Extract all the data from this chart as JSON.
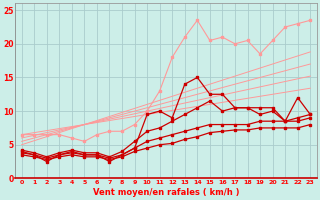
{
  "x": [
    0,
    1,
    2,
    3,
    4,
    5,
    6,
    7,
    8,
    9,
    10,
    11,
    12,
    13,
    14,
    15,
    16,
    17,
    18,
    19,
    20,
    21,
    22,
    23
  ],
  "reg1": [
    6.5,
    6.8,
    7.1,
    7.4,
    7.7,
    8.0,
    8.3,
    8.6,
    8.9,
    9.2,
    9.5,
    9.8,
    10.1,
    10.4,
    10.7,
    11.0,
    11.3,
    11.6,
    11.9,
    12.2,
    12.5,
    12.8,
    13.1,
    13.4
  ],
  "reg2": [
    6.0,
    6.4,
    6.8,
    7.2,
    7.6,
    8.0,
    8.4,
    8.8,
    9.2,
    9.6,
    10.0,
    10.4,
    10.8,
    11.2,
    11.6,
    12.0,
    12.4,
    12.8,
    13.2,
    13.6,
    14.0,
    14.4,
    14.8,
    15.2
  ],
  "reg3": [
    5.5,
    6.0,
    6.5,
    7.0,
    7.5,
    8.0,
    8.5,
    9.0,
    9.5,
    10.0,
    10.5,
    11.0,
    11.5,
    12.0,
    12.5,
    13.0,
    13.5,
    14.0,
    14.5,
    15.0,
    15.5,
    16.0,
    16.5,
    17.0
  ],
  "reg4": [
    5.0,
    5.6,
    6.2,
    6.8,
    7.4,
    8.0,
    8.6,
    9.2,
    9.8,
    10.4,
    11.0,
    11.6,
    12.2,
    12.8,
    13.4,
    14.0,
    14.6,
    15.2,
    15.8,
    16.4,
    17.0,
    17.6,
    18.2,
    18.8
  ],
  "light_jagged": [
    6.5,
    6.5,
    6.5,
    6.5,
    6.0,
    5.5,
    6.5,
    7.0,
    7.0,
    8.0,
    10.0,
    13.0,
    18.0,
    21.0,
    23.5,
    20.5,
    21.0,
    20.0,
    20.5,
    18.5,
    20.5,
    22.5,
    23.0,
    23.5
  ],
  "dark1": [
    4.0,
    3.5,
    2.5,
    3.5,
    4.0,
    3.5,
    3.5,
    2.5,
    3.5,
    4.5,
    9.5,
    10.0,
    9.0,
    14.0,
    15.0,
    12.5,
    12.5,
    10.5,
    10.5,
    10.5,
    10.5,
    8.5,
    12.0,
    9.5
  ],
  "dark2": [
    4.2,
    3.8,
    3.2,
    3.8,
    4.2,
    3.8,
    3.8,
    3.2,
    4.0,
    5.5,
    7.0,
    7.5,
    8.5,
    9.5,
    10.5,
    11.5,
    10.0,
    10.5,
    10.5,
    9.5,
    10.0,
    8.5,
    9.0,
    9.5
  ],
  "dark3": [
    3.8,
    3.5,
    3.0,
    3.5,
    3.8,
    3.5,
    3.5,
    3.0,
    3.5,
    4.5,
    5.5,
    6.0,
    6.5,
    7.0,
    7.5,
    8.0,
    8.0,
    8.0,
    8.0,
    8.5,
    8.5,
    8.5,
    8.5,
    9.0
  ],
  "dark4": [
    3.5,
    3.2,
    2.8,
    3.2,
    3.5,
    3.2,
    3.2,
    2.8,
    3.2,
    4.0,
    4.5,
    5.0,
    5.2,
    5.8,
    6.2,
    6.8,
    7.0,
    7.2,
    7.2,
    7.5,
    7.5,
    7.5,
    7.5,
    8.0
  ],
  "color_light": "#ff9999",
  "color_dark": "#cc0000",
  "bg_color": "#cceee8",
  "grid_color": "#aacccc",
  "xlabel": "Vent moyen/en rafales ( km/h )",
  "ylim": [
    0,
    26
  ],
  "xlim": [
    -0.5,
    23.5
  ]
}
